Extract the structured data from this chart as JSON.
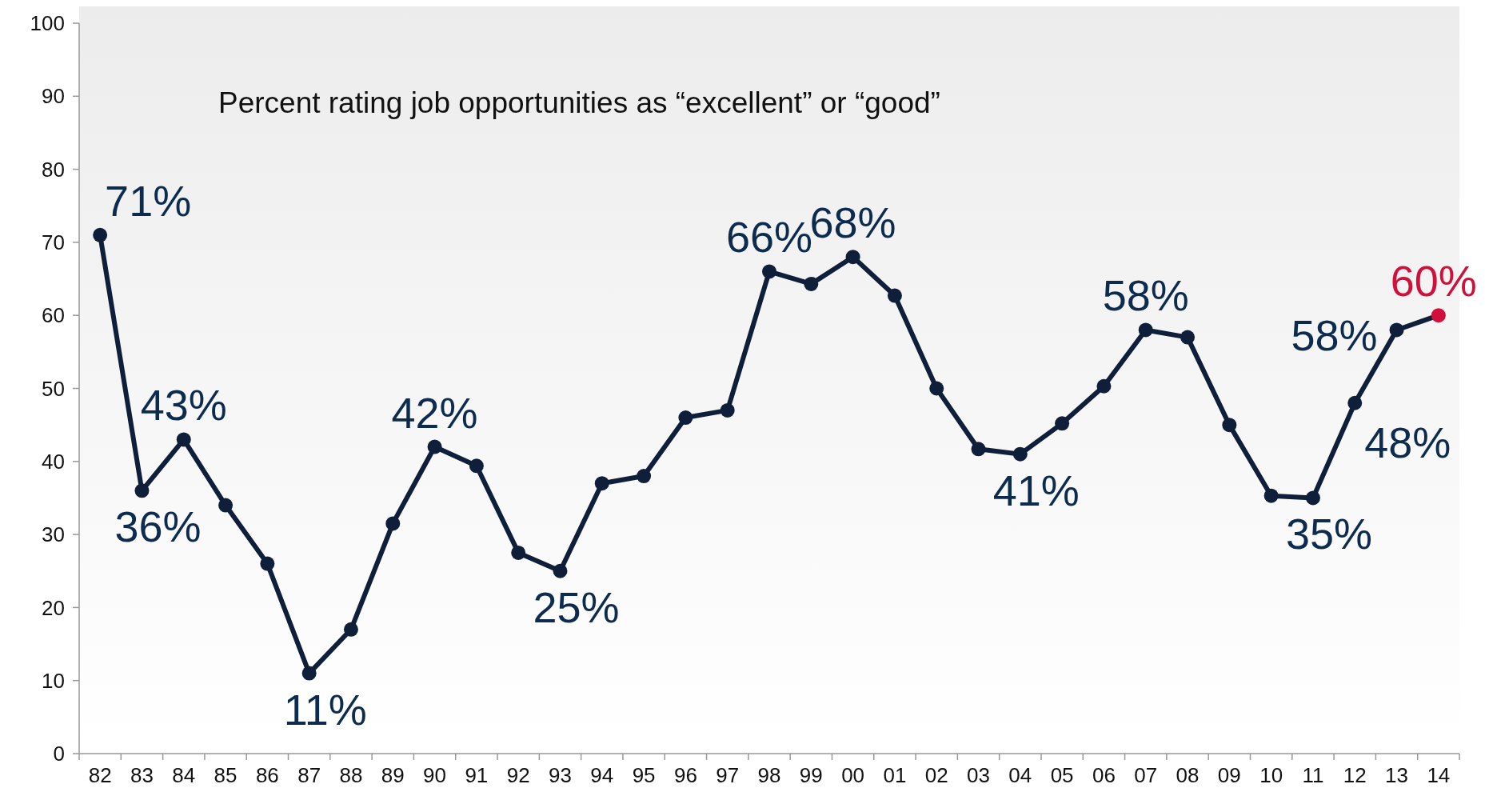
{
  "chart_data": {
    "type": "line",
    "title": "Percent rating job opportunities as “excellent” or “good”",
    "categories": [
      "82",
      "83",
      "84",
      "85",
      "86",
      "87",
      "88",
      "89",
      "90",
      "91",
      "92",
      "93",
      "94",
      "95",
      "96",
      "97",
      "98",
      "99",
      "00",
      "01",
      "02",
      "03",
      "04",
      "05",
      "06",
      "07",
      "08",
      "09",
      "10",
      "11",
      "12",
      "13",
      "14"
    ],
    "series": [
      {
        "color": "#0f1f3a",
        "colors": [
          "#0f1f3a",
          "#0f1f3a",
          "#0f1f3a",
          "#0f1f3a",
          "#0f1f3a",
          "#0f1f3a",
          "#0f1f3a",
          "#0f1f3a",
          "#0f1f3a",
          "#0f1f3a",
          "#0f1f3a",
          "#0f1f3a",
          "#0f1f3a",
          "#0f1f3a",
          "#0f1f3a",
          "#0f1f3a",
          "#0f1f3a",
          "#0f1f3a",
          "#0f1f3a",
          "#0f1f3a",
          "#0f1f3a",
          "#0f1f3a",
          "#0f1f3a",
          "#0f1f3a",
          "#0f1f3a",
          "#0f1f3a",
          "#0f1f3a",
          "#0f1f3a",
          "#0f1f3a",
          "#0f1f3a",
          "#0f1f3a",
          "#0f1f3a",
          "#d0103a"
        ],
        "values": [
          71,
          36,
          43,
          34,
          26,
          11,
          17,
          31.5,
          42,
          39.4,
          27.5,
          25,
          37,
          38,
          46,
          47,
          66,
          64.3,
          68,
          62.7,
          50,
          41.7,
          41,
          45.2,
          50.3,
          58,
          57,
          45,
          35.3,
          35,
          48,
          58,
          60
        ],
        "value_labels": [
          "71%",
          "36%",
          "43%",
          null,
          null,
          "11%",
          null,
          null,
          "42%",
          null,
          null,
          "25%",
          null,
          null,
          null,
          null,
          "66%",
          null,
          "68%",
          null,
          null,
          null,
          "41%",
          null,
          null,
          "58%",
          null,
          null,
          null,
          "35%",
          "48%",
          "58%",
          "60%"
        ]
      }
    ],
    "ylim": [
      0,
      100
    ],
    "yticks": [
      0,
      10,
      20,
      30,
      40,
      50,
      60,
      70,
      80,
      90,
      100
    ],
    "grid": false,
    "marker": "circle",
    "line_style": "solid"
  }
}
